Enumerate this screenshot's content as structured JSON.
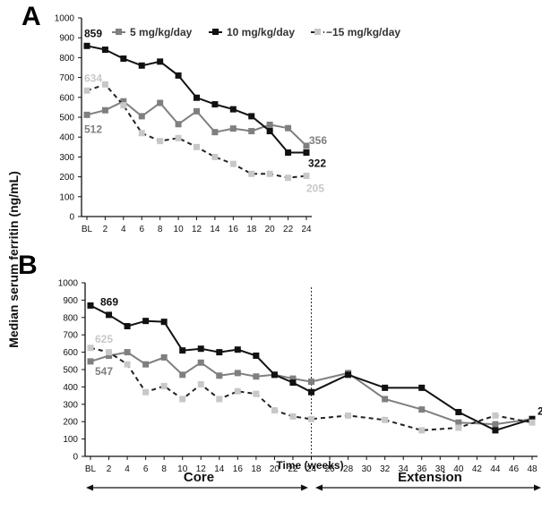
{
  "panels": {
    "a_label": "A",
    "b_label": "B"
  },
  "ylabel": "Median serum ferritin (ng/mL)",
  "xlabel": "Time (weeks)",
  "phases": {
    "core": "Core",
    "extension": "Extension"
  },
  "legend": [
    "5 mg/kg/day",
    "10 mg/kg/day",
    "−15 mg/kg/day"
  ],
  "colors": {
    "series_5": "#7f7f7f",
    "series_10": "#111111",
    "series_15": "#c8c8c8"
  },
  "chart_data": [
    {
      "type": "line",
      "panel": "A",
      "xlabel": "",
      "ylabel": "Median serum ferritin (ng/mL)",
      "x": [
        "BL",
        "2",
        "4",
        "6",
        "8",
        "10",
        "12",
        "14",
        "16",
        "18",
        "20",
        "22",
        "24"
      ],
      "ylim": [
        0,
        1000
      ],
      "yticks": [
        0,
        100,
        200,
        300,
        400,
        500,
        600,
        700,
        800,
        900,
        1000
      ],
      "grid": false,
      "legend_position": "top",
      "series": [
        {
          "name": "5 mg/kg/day",
          "values": [
            512,
            535,
            580,
            505,
            572,
            465,
            530,
            425,
            443,
            430,
            462,
            445,
            356
          ]
        },
        {
          "name": "10 mg/kg/day",
          "values": [
            859,
            840,
            795,
            760,
            780,
            710,
            598,
            565,
            540,
            505,
            430,
            322,
            322
          ]
        },
        {
          "name": "−15 mg/kg/day",
          "values": [
            634,
            665,
            560,
            420,
            380,
            395,
            350,
            300,
            265,
            215,
            215,
            195,
            205
          ]
        }
      ],
      "annotations": [
        "859",
        "634",
        "512",
        "356",
        "322",
        "205"
      ]
    },
    {
      "type": "line",
      "panel": "B",
      "xlabel": "Time (weeks)",
      "ylabel": "Median serum ferritin (ng/mL)",
      "x": [
        "BL",
        "2",
        "4",
        "6",
        "8",
        "10",
        "12",
        "14",
        "16",
        "18",
        "20",
        "22",
        "24",
        "26",
        "28",
        "30",
        "32",
        "34",
        "36",
        "38",
        "40",
        "42",
        "44",
        "46",
        "48"
      ],
      "ylim": [
        0,
        1000
      ],
      "yticks": [
        0,
        100,
        200,
        300,
        400,
        500,
        600,
        700,
        800,
        900,
        1000
      ],
      "grid": false,
      "divider_at": "24",
      "series": [
        {
          "name": "5 mg/kg/day",
          "points": [
            [
              "BL",
              547
            ],
            [
              "2",
              580
            ],
            [
              "4",
              600
            ],
            [
              "6",
              530
            ],
            [
              "8",
              570
            ],
            [
              "10",
              470
            ],
            [
              "12",
              540
            ],
            [
              "14",
              465
            ],
            [
              "16",
              480
            ],
            [
              "18",
              460
            ],
            [
              "20",
              470
            ],
            [
              "22",
              448
            ],
            [
              "24",
              430
            ],
            [
              "28",
              480
            ],
            [
              "32",
              330
            ],
            [
              "36",
              270
            ],
            [
              "40",
              195
            ],
            [
              "44",
              185
            ],
            [
              "48",
              215
            ]
          ]
        },
        {
          "name": "10 mg/kg/day",
          "points": [
            [
              "BL",
              869
            ],
            [
              "2",
              815
            ],
            [
              "4",
              750
            ],
            [
              "6",
              780
            ],
            [
              "8",
              775
            ],
            [
              "10",
              610
            ],
            [
              "12",
              620
            ],
            [
              "14",
              600
            ],
            [
              "16",
              615
            ],
            [
              "18",
              580
            ],
            [
              "20",
              470
            ],
            [
              "22",
              425
            ],
            [
              "24",
              370
            ],
            [
              "28",
              470
            ],
            [
              "32",
              395
            ],
            [
              "36",
              395
            ],
            [
              "40",
              255
            ],
            [
              "44",
              150
            ],
            [
              "48",
              215
            ]
          ]
        },
        {
          "name": "−15 mg/kg/day",
          "points": [
            [
              "BL",
              625
            ],
            [
              "2",
              600
            ],
            [
              "4",
              530
            ],
            [
              "6",
              370
            ],
            [
              "8",
              405
            ],
            [
              "10",
              330
            ],
            [
              "12",
              415
            ],
            [
              "14",
              330
            ],
            [
              "16",
              375
            ],
            [
              "18",
              360
            ],
            [
              "20",
              265
            ],
            [
              "22",
              230
            ],
            [
              "24",
              215
            ],
            [
              "28",
              235
            ],
            [
              "32",
              210
            ],
            [
              "36",
              150
            ],
            [
              "40",
              165
            ],
            [
              "44",
              235
            ],
            [
              "48",
              195
            ]
          ]
        }
      ],
      "annotations": [
        "869",
        "625",
        "547",
        "2"
      ]
    }
  ]
}
